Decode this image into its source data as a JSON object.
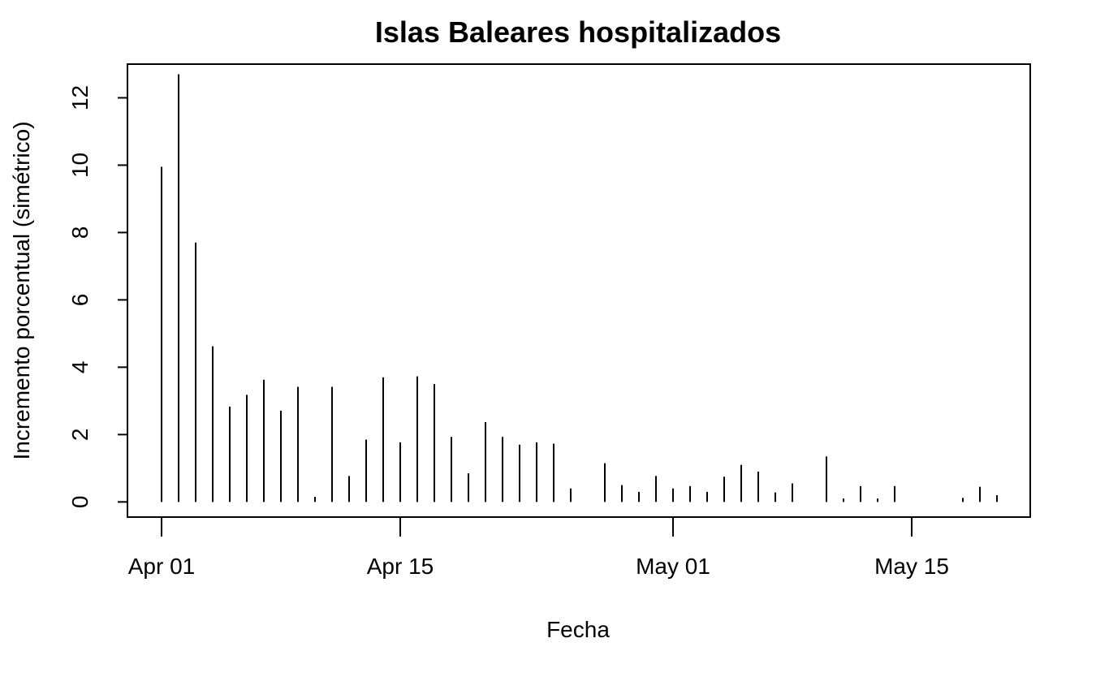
{
  "chart_data": {
    "type": "bar",
    "style": "vertical-spikes",
    "title": "Islas Baleares hospitalizados",
    "xlabel": "Fecha",
    "ylabel": "Incremento porcentual (simétrico)",
    "x_axis": {
      "type": "date",
      "start": "2020-04-01",
      "end": "2020-05-20",
      "ticks": [
        {
          "date": "2020-04-01",
          "label": "Apr 01"
        },
        {
          "date": "2020-04-15",
          "label": "Apr 15"
        },
        {
          "date": "2020-05-01",
          "label": "May 01"
        },
        {
          "date": "2020-05-15",
          "label": "May 15"
        }
      ]
    },
    "y_axis": {
      "ylim": [
        -0.45,
        13.0
      ],
      "ticks": [
        0,
        2,
        4,
        6,
        8,
        10,
        12
      ]
    },
    "series": [
      {
        "dates": [
          "2020-04-01",
          "2020-04-02",
          "2020-04-03",
          "2020-04-04",
          "2020-04-05",
          "2020-04-06",
          "2020-04-07",
          "2020-04-08",
          "2020-04-09",
          "2020-04-10",
          "2020-04-11",
          "2020-04-12",
          "2020-04-13",
          "2020-04-14",
          "2020-04-15",
          "2020-04-16",
          "2020-04-17",
          "2020-04-18",
          "2020-04-19",
          "2020-04-20",
          "2020-04-21",
          "2020-04-22",
          "2020-04-23",
          "2020-04-24",
          "2020-04-25",
          "2020-04-26",
          "2020-04-27",
          "2020-04-28",
          "2020-04-29",
          "2020-04-30",
          "2020-05-01",
          "2020-05-02",
          "2020-05-03",
          "2020-05-04",
          "2020-05-05",
          "2020-05-06",
          "2020-05-07",
          "2020-05-08",
          "2020-05-09",
          "2020-05-10",
          "2020-05-11",
          "2020-05-12",
          "2020-05-13",
          "2020-05-14",
          "2020-05-15",
          "2020-05-16",
          "2020-05-17",
          "2020-05-18",
          "2020-05-19",
          "2020-05-20"
        ],
        "values": [
          9.95,
          12.7,
          7.7,
          4.62,
          2.83,
          3.18,
          3.63,
          2.71,
          3.42,
          0.15,
          3.42,
          0.77,
          1.85,
          3.7,
          1.77,
          3.73,
          3.5,
          1.93,
          0.85,
          2.37,
          1.93,
          1.7,
          1.77,
          1.73,
          0.4,
          0.0,
          1.15,
          0.5,
          0.3,
          0.77,
          0.4,
          0.47,
          0.3,
          0.75,
          1.1,
          0.9,
          0.28,
          0.55,
          0.0,
          1.35,
          0.1,
          0.47,
          0.1,
          0.47,
          null,
          null,
          0.0,
          0.12,
          0.45,
          0.2
        ]
      }
    ],
    "grid": false,
    "legend": "none"
  }
}
